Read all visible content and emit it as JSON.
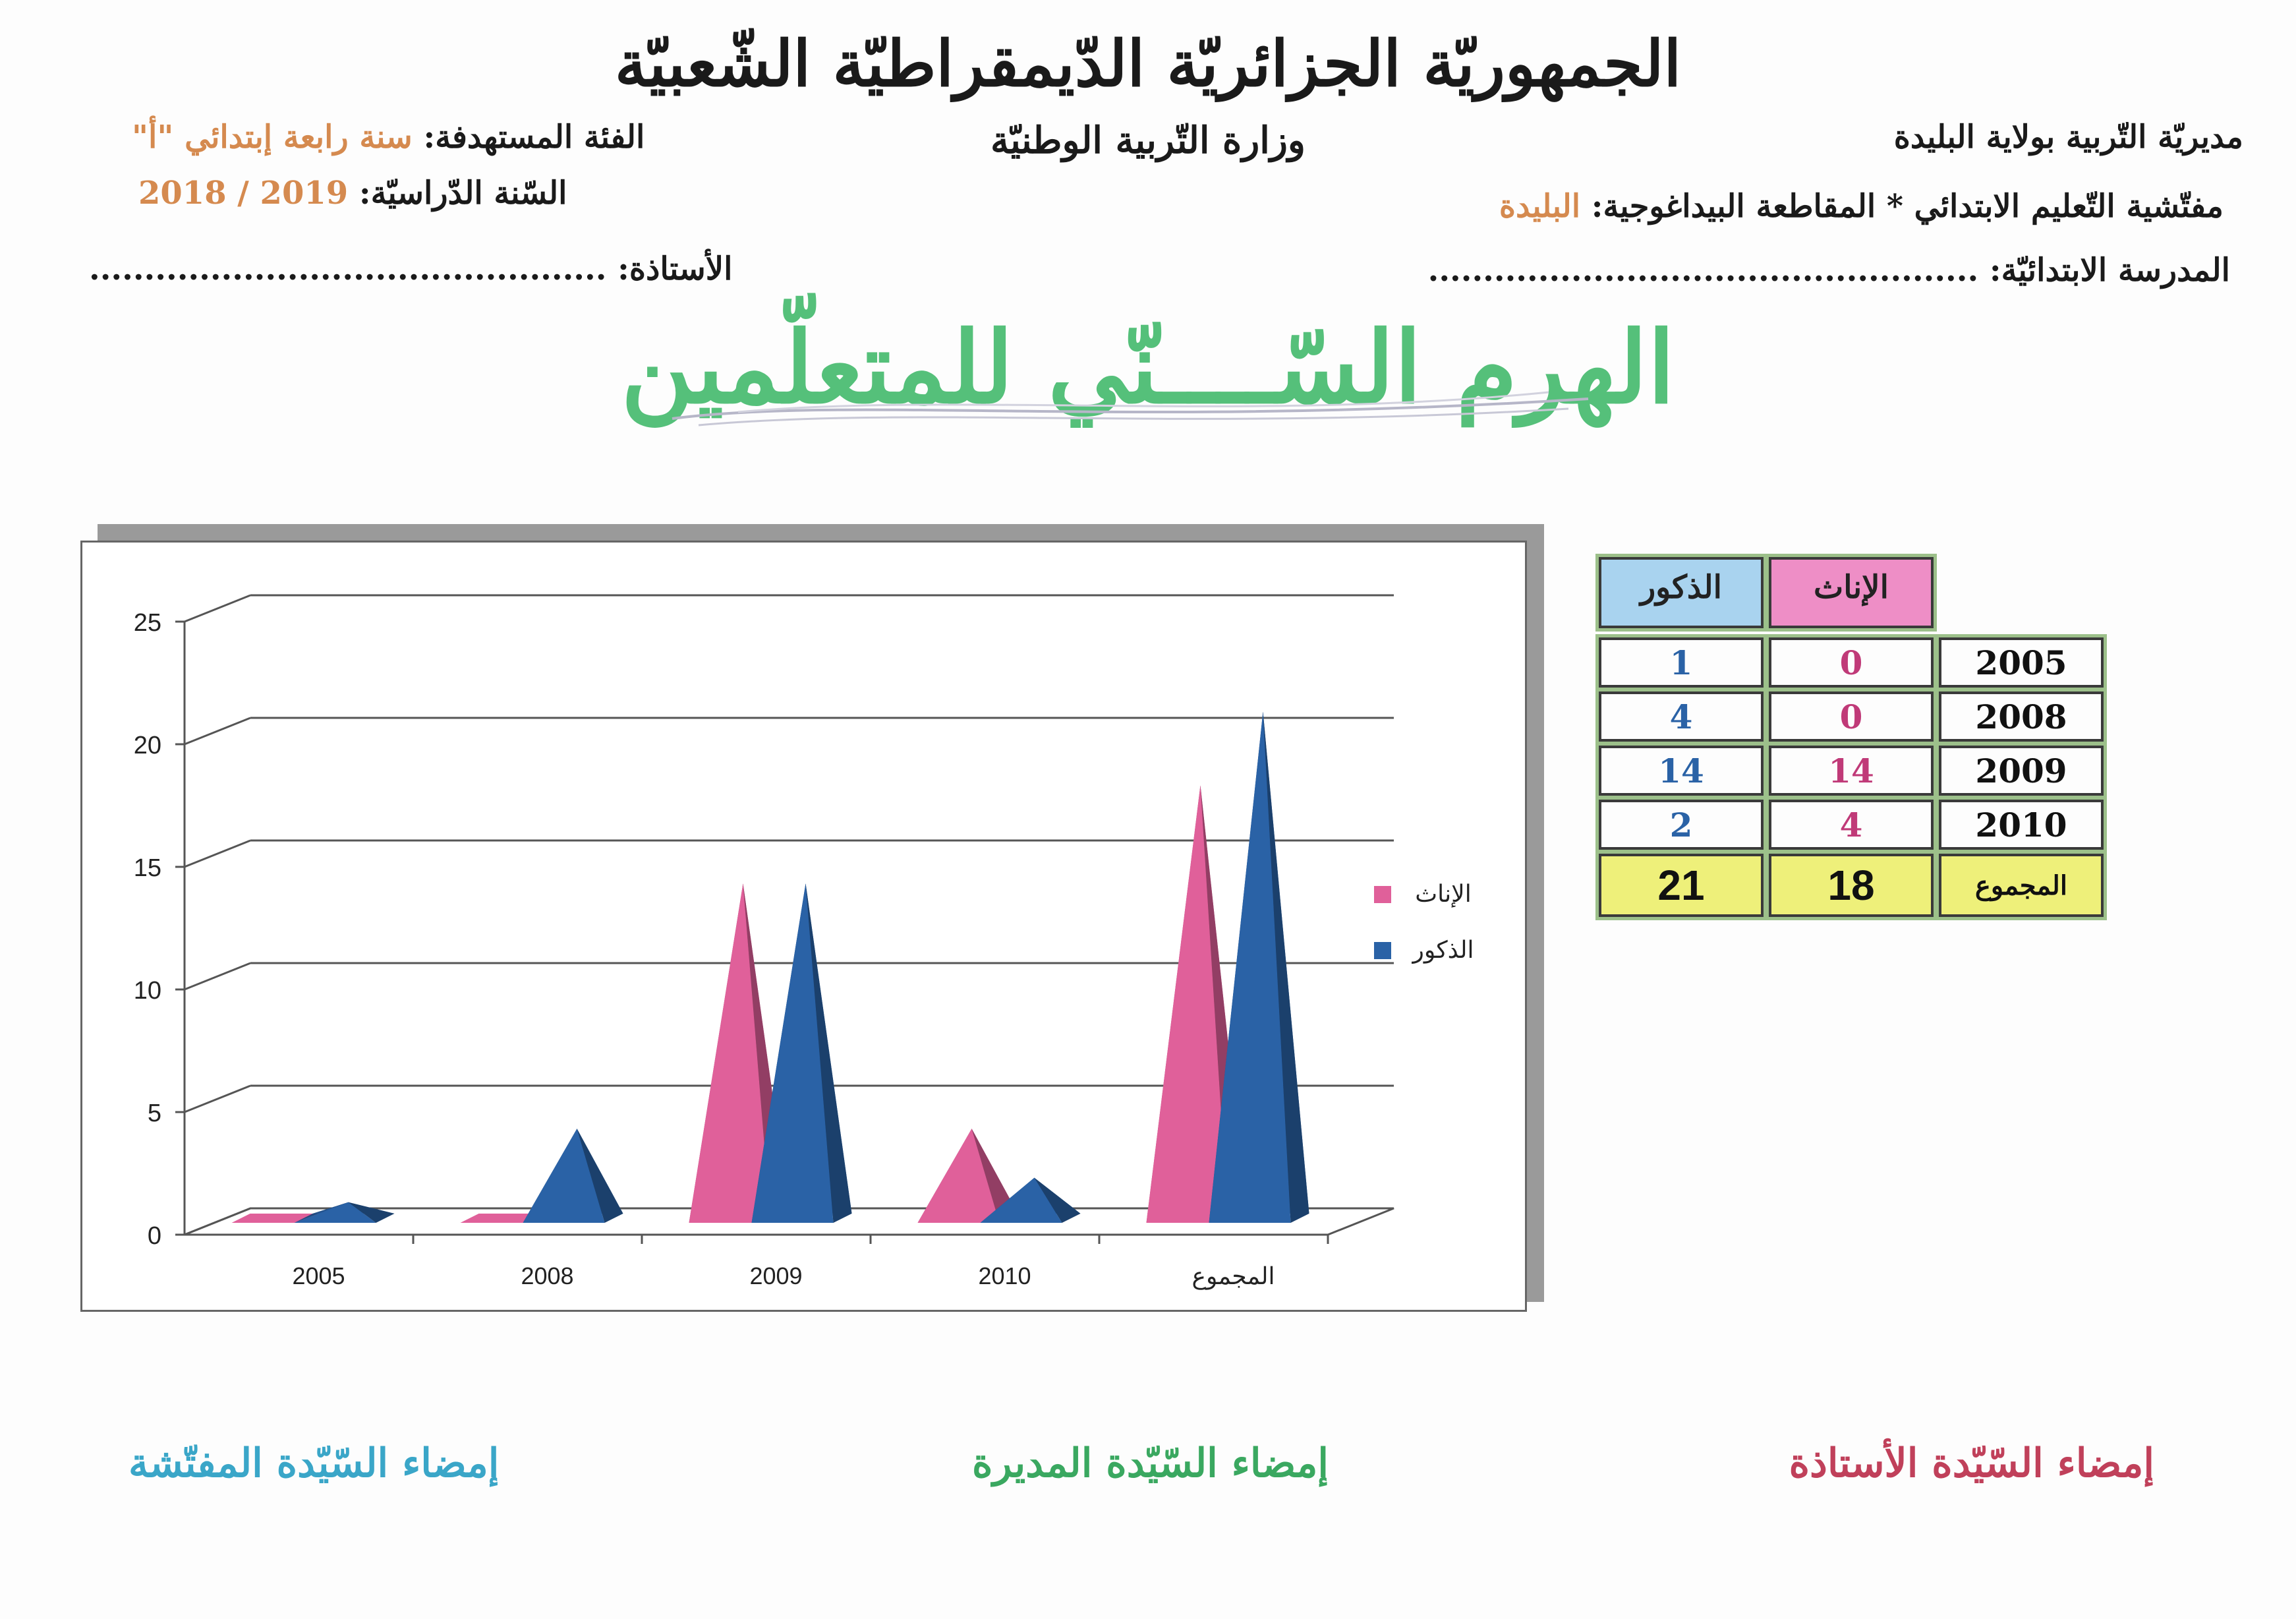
{
  "header": {
    "republic": "الجمهوريّة الجزائريّة الدّيمقراطيّة الشّعبيّة",
    "ministry": "وزارة التّربية الوطنيّة",
    "directorate": "مديريّة التّربية بولاية البليدة",
    "inspectorate_label": "مفتّشية التّعليم الابتدائي * المقاطعة البيداغوجية:",
    "inspectorate_value": "البليدة",
    "school_label": "المدرسة الابتدائيّة: ..................................................",
    "target_label": "الفئة المستهدفة:",
    "target_value": "سنة رابعة إبتدائي \"أ\"",
    "year_label": "السّنة الدّراسيّة:",
    "year_value": "2018 / 2019",
    "teacher_label": "الأستاذة: ..............................................."
  },
  "page_title": "الهرم السّــــنّي للمتعلّمين",
  "table": {
    "headers": [
      "الذكور",
      "الإناث"
    ],
    "rows": [
      {
        "label": "2005",
        "males": "1",
        "females": "0"
      },
      {
        "label": "2008",
        "males": "4",
        "females": "0"
      },
      {
        "label": "2009",
        "males": "14",
        "females": "14"
      },
      {
        "label": "2010",
        "males": "2",
        "females": "4"
      }
    ],
    "total_row": {
      "label": "المجموع",
      "males": "21",
      "females": "18"
    }
  },
  "chart_data": {
    "type": "bar",
    "style": "3d-pyramid",
    "categories": [
      "2005",
      "2008",
      "2009",
      "2010",
      "المجموع"
    ],
    "series": [
      {
        "name": "الإناث",
        "values": [
          0,
          0,
          14,
          4,
          18
        ],
        "color": "#e0609a"
      },
      {
        "name": "الذكور",
        "values": [
          1,
          4,
          14,
          2,
          21
        ],
        "color": "#2a62a6"
      }
    ],
    "ylim": [
      0,
      25
    ],
    "yticks": [
      "0",
      "5",
      "10",
      "15",
      "20",
      "25"
    ],
    "grid": true,
    "legend_position": "right"
  },
  "signatures": {
    "teacher": "إمضاء السّيّدة الأستاذة",
    "director": "إمضاء السّيّدة المديرة",
    "inspector": "إمضاء السّيّدة المفتّشة"
  },
  "colors": {
    "males_header_bg": "#a9d3ef",
    "females_header_bg": "#ee8ec6",
    "total_bg": "#eef07a",
    "males_text": "#2a62a6",
    "females_text": "#c03a78",
    "title_green": "#55c07a",
    "sig_teacher": "#c0405a",
    "sig_director": "#3aa860",
    "sig_inspector": "#3aa6c8"
  }
}
